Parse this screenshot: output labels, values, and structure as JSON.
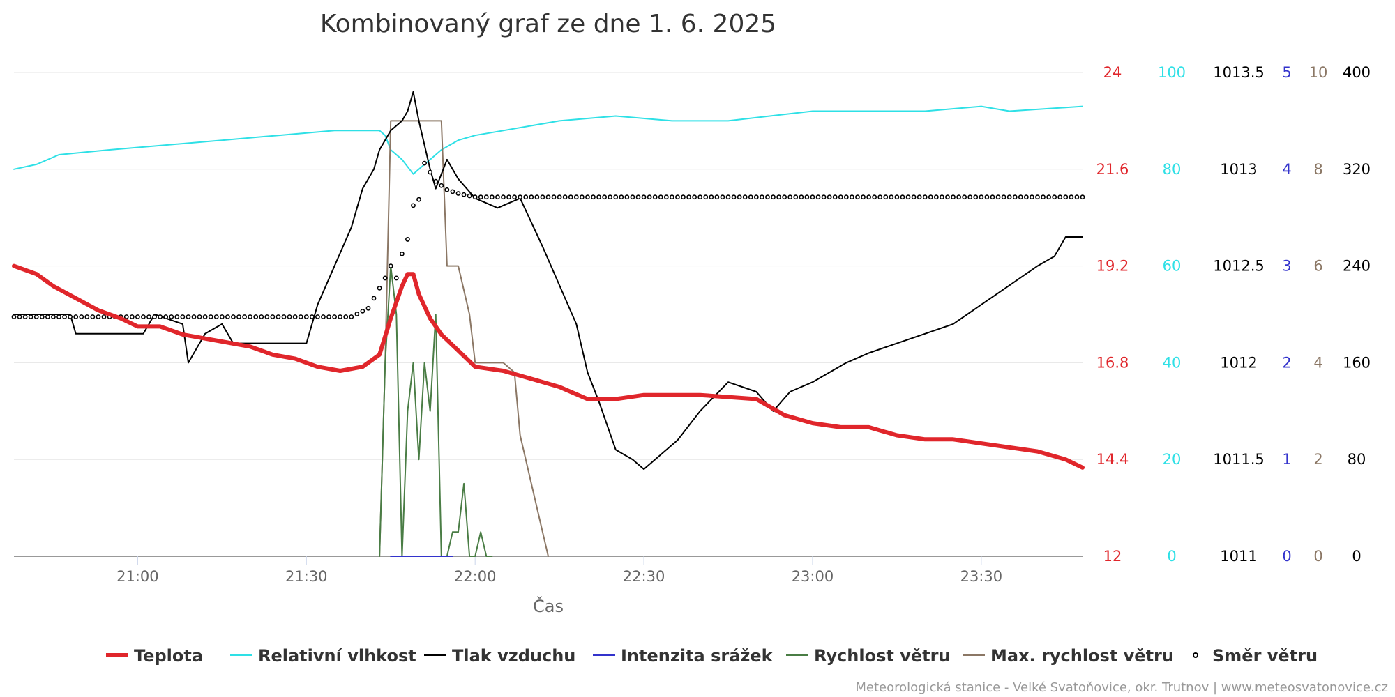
{
  "chart_data": {
    "type": "line",
    "title": "Kombinovaný graf ze dne 1. 6. 2025",
    "xlabel": "Čas",
    "x_range": [
      "20:38",
      "23:48"
    ],
    "x_ticks": [
      "21:00",
      "21:30",
      "22:00",
      "22:30",
      "23:00",
      "23:30"
    ],
    "grid": true,
    "legend_position": "bottom",
    "credits": "Meteorologická stanice - Velké Svatoňovice, okr. Trutnov | www.meteosvatonovice.cz",
    "y_axes": [
      {
        "series": "Teplota",
        "min": 12,
        "max": 24,
        "ticks": [
          "12",
          "14.4",
          "16.8",
          "19.2",
          "21.6",
          "24"
        ],
        "color": "#e0262b"
      },
      {
        "series": "Relativní vlhkost",
        "min": 0,
        "max": 100,
        "ticks": [
          "0",
          "20",
          "40",
          "60",
          "80",
          "100"
        ],
        "color": "#2ee0e6"
      },
      {
        "series": "Tlak vzduchu",
        "min": 1011,
        "max": 1013.5,
        "ticks": [
          "1011",
          "1011.5",
          "1012",
          "1012.5",
          "1013",
          "1013.5"
        ],
        "color": "#000000"
      },
      {
        "series": "Intenzita srážek",
        "min": 0,
        "max": 5,
        "ticks": [
          "0",
          "1",
          "2",
          "3",
          "4",
          "5"
        ],
        "color": "#3333cc"
      },
      {
        "series": "Max. rychlost větru",
        "min": 0,
        "max": 10,
        "ticks": [
          "0",
          "2",
          "4",
          "6",
          "8",
          "10"
        ],
        "color": "#8b7765"
      },
      {
        "series": "Směr větru",
        "min": 0,
        "max": 400,
        "ticks": [
          "0",
          "80",
          "160",
          "240",
          "320",
          "400"
        ],
        "color": "#000000"
      }
    ],
    "series": [
      {
        "name": "Teplota",
        "color": "#e0262b",
        "style": "line-thick",
        "x": [
          "20:38",
          "20:42",
          "20:45",
          "20:49",
          "20:53",
          "20:57",
          "21:00",
          "21:04",
          "21:08",
          "21:12",
          "21:16",
          "21:20",
          "21:24",
          "21:28",
          "21:32",
          "21:36",
          "21:40",
          "21:43",
          "21:45",
          "21:47",
          "21:48",
          "21:49",
          "21:50",
          "21:52",
          "21:54",
          "21:57",
          "22:00",
          "22:05",
          "22:10",
          "22:15",
          "22:20",
          "22:25",
          "22:30",
          "22:40",
          "22:50",
          "22:55",
          "23:00",
          "23:05",
          "23:10",
          "23:15",
          "23:20",
          "23:25",
          "23:30",
          "23:35",
          "23:40",
          "23:45",
          "23:48"
        ],
        "values": [
          19.2,
          19.0,
          18.7,
          18.4,
          18.1,
          17.9,
          17.7,
          17.7,
          17.5,
          17.4,
          17.3,
          17.2,
          17.0,
          16.9,
          16.7,
          16.6,
          16.7,
          17.0,
          17.9,
          18.7,
          19.0,
          19.0,
          18.5,
          17.9,
          17.5,
          17.1,
          16.7,
          16.6,
          16.4,
          16.2,
          15.9,
          15.9,
          16.0,
          16.0,
          15.9,
          15.5,
          15.3,
          15.2,
          15.2,
          15.0,
          14.9,
          14.9,
          14.8,
          14.7,
          14.6,
          14.4,
          14.2
        ]
      },
      {
        "name": "Relativní vlhkost",
        "color": "#2ee0e6",
        "style": "line",
        "x": [
          "20:38",
          "20:42",
          "20:46",
          "20:55",
          "21:05",
          "21:15",
          "21:25",
          "21:35",
          "21:40",
          "21:43",
          "21:44",
          "21:45",
          "21:47",
          "21:49",
          "21:50",
          "21:52",
          "21:54",
          "21:57",
          "22:00",
          "22:05",
          "22:15",
          "22:25",
          "22:35",
          "22:45",
          "23:00",
          "23:10",
          "23:20",
          "23:30",
          "23:35",
          "23:48"
        ],
        "values": [
          80,
          81,
          83,
          84,
          85,
          86,
          87,
          88,
          88,
          88,
          87,
          84,
          82,
          79,
          80,
          82,
          84,
          86,
          87,
          88,
          90,
          91,
          90,
          90,
          92,
          92,
          92,
          93,
          92,
          93
        ]
      },
      {
        "name": "Tlak vzduchu",
        "color": "#000000",
        "style": "line",
        "x": [
          "20:38",
          "20:48",
          "20:49",
          "21:01",
          "21:03",
          "21:08",
          "21:09",
          "21:12",
          "21:15",
          "21:17",
          "21:20",
          "21:30",
          "21:32",
          "21:35",
          "21:38",
          "21:40",
          "21:42",
          "21:43",
          "21:45",
          "21:47",
          "21:48",
          "21:49",
          "21:50",
          "21:52",
          "21:53",
          "21:55",
          "21:57",
          "22:00",
          "22:04",
          "22:08",
          "22:12",
          "22:15",
          "22:18",
          "22:20",
          "22:22",
          "22:25",
          "22:28",
          "22:30",
          "22:32",
          "22:36",
          "22:40",
          "22:45",
          "22:50",
          "22:53",
          "22:56",
          "23:00",
          "23:03",
          "23:06",
          "23:10",
          "23:15",
          "23:20",
          "23:25",
          "23:30",
          "23:35",
          "23:40",
          "23:43",
          "23:45",
          "23:48"
        ],
        "values": [
          1012.25,
          1012.25,
          1012.15,
          1012.15,
          1012.25,
          1012.2,
          1012.0,
          1012.15,
          1012.2,
          1012.1,
          1012.1,
          1012.1,
          1012.3,
          1012.5,
          1012.7,
          1012.9,
          1013.0,
          1013.1,
          1013.2,
          1013.25,
          1013.3,
          1013.4,
          1013.25,
          1013.0,
          1012.9,
          1013.05,
          1012.95,
          1012.85,
          1012.8,
          1012.85,
          1012.6,
          1012.4,
          1012.2,
          1011.95,
          1011.8,
          1011.55,
          1011.5,
          1011.45,
          1011.5,
          1011.6,
          1011.75,
          1011.9,
          1011.85,
          1011.75,
          1011.85,
          1011.9,
          1011.95,
          1012.0,
          1012.05,
          1012.1,
          1012.15,
          1012.2,
          1012.3,
          1012.4,
          1012.5,
          1012.55,
          1012.65,
          1012.65
        ]
      },
      {
        "name": "Intenzita srážek",
        "color": "#3333cc",
        "style": "line",
        "x": [
          "21:45",
          "21:56"
        ],
        "values": [
          0,
          0
        ]
      },
      {
        "name": "Rychlost větru",
        "color": "#4a7d45",
        "style": "line",
        "x": [
          "21:43",
          "21:44",
          "21:45",
          "21:46",
          "21:47",
          "21:48",
          "21:49",
          "21:50",
          "21:51",
          "21:52",
          "21:53",
          "21:54",
          "21:55",
          "21:56",
          "21:57",
          "21:58",
          "21:59",
          "22:00",
          "22:01",
          "22:02",
          "22:03"
        ],
        "values": [
          0,
          4,
          6,
          5,
          0,
          3,
          4,
          2,
          4,
          3,
          5,
          0,
          0,
          0.5,
          0.5,
          1.5,
          0,
          0,
          0.5,
          0,
          0
        ]
      },
      {
        "name": "Max. rychlost větru",
        "color": "#8b7765",
        "style": "line",
        "x": [
          "21:43",
          "21:44",
          "21:45",
          "21:47",
          "21:50",
          "21:54",
          "21:55",
          "21:57",
          "21:59",
          "22:00",
          "22:03",
          "22:05",
          "22:07",
          "22:08",
          "22:10",
          "22:12",
          "22:13"
        ],
        "values": [
          0,
          4,
          9,
          9,
          9,
          9,
          6,
          6,
          5,
          4,
          4,
          4,
          3.8,
          2.5,
          1.5,
          0.5,
          0
        ]
      },
      {
        "name": "Směr větru",
        "color": "#000000",
        "style": "dots",
        "x": [
          "20:38",
          "20:50",
          "21:00",
          "21:10",
          "21:20",
          "21:30",
          "21:38",
          "21:41",
          "21:44",
          "21:45",
          "21:46",
          "21:47",
          "21:48",
          "21:49",
          "21:50",
          "21:51",
          "21:53",
          "21:55",
          "21:57",
          "22:00",
          "22:30",
          "23:00",
          "23:30",
          "23:48"
        ],
        "values": [
          198,
          198,
          198,
          198,
          198,
          198,
          198,
          205,
          230,
          240,
          230,
          250,
          262,
          290,
          295,
          325,
          310,
          303,
          300,
          297,
          297,
          297,
          297,
          297
        ]
      }
    ]
  }
}
